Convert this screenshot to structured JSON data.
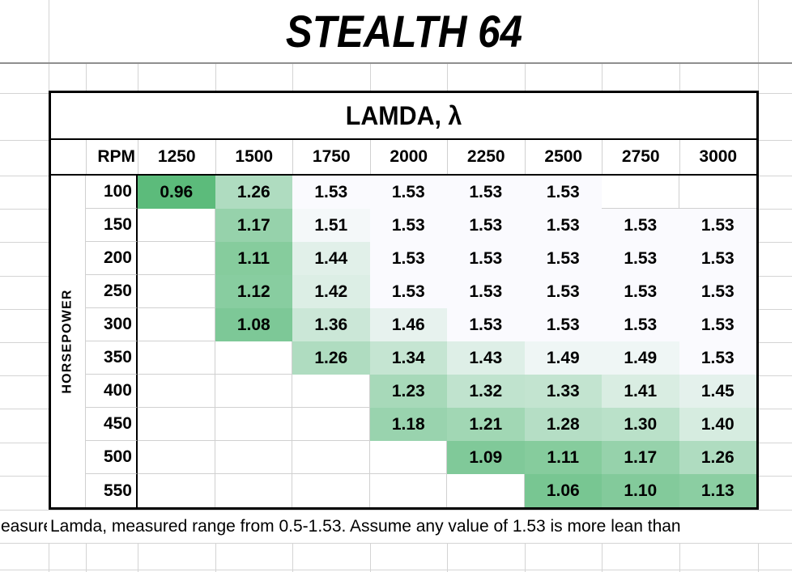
{
  "app": {
    "title": "STEALTH 64"
  },
  "table": {
    "header": "LAMDA, λ",
    "corner_label": "RPM",
    "row_axis_label": "HORSEPOWER",
    "rpm_columns": [
      "1250",
      "1500",
      "1750",
      "2000",
      "2250",
      "2500",
      "2750",
      "3000"
    ],
    "rows": [
      {
        "hp": "100",
        "values": [
          "0.96",
          "1.26",
          "1.53",
          "1.53",
          "1.53",
          "1.53",
          null,
          null
        ]
      },
      {
        "hp": "150",
        "values": [
          null,
          "1.17",
          "1.51",
          "1.53",
          "1.53",
          "1.53",
          "1.53",
          "1.53"
        ]
      },
      {
        "hp": "200",
        "values": [
          null,
          "1.11",
          "1.44",
          "1.53",
          "1.53",
          "1.53",
          "1.53",
          "1.53"
        ]
      },
      {
        "hp": "250",
        "values": [
          null,
          "1.12",
          "1.42",
          "1.53",
          "1.53",
          "1.53",
          "1.53",
          "1.53"
        ]
      },
      {
        "hp": "300",
        "values": [
          null,
          "1.08",
          "1.36",
          "1.46",
          "1.53",
          "1.53",
          "1.53",
          "1.53"
        ]
      },
      {
        "hp": "350",
        "values": [
          null,
          null,
          "1.26",
          "1.34",
          "1.43",
          "1.49",
          "1.49",
          "1.53"
        ]
      },
      {
        "hp": "400",
        "values": [
          null,
          null,
          null,
          "1.23",
          "1.32",
          "1.33",
          "1.41",
          "1.45"
        ]
      },
      {
        "hp": "450",
        "values": [
          null,
          null,
          null,
          "1.18",
          "1.21",
          "1.28",
          "1.30",
          "1.40"
        ]
      },
      {
        "hp": "500",
        "values": [
          null,
          null,
          null,
          null,
          "1.09",
          "1.11",
          "1.17",
          "1.26"
        ]
      },
      {
        "hp": "550",
        "values": [
          null,
          null,
          null,
          null,
          null,
          "1.06",
          "1.10",
          "1.13"
        ]
      }
    ],
    "color_scale": {
      "min_value": 0.96,
      "max_value": 1.53,
      "min_color": "#5CBB7B",
      "max_color": "#FAFAFE",
      "blank_color": "#FFFFFF"
    }
  },
  "footnote": {
    "left_clipped_text": "easured",
    "text": "Lamda, measured range from 0.5-1.53. Assume any value of 1.53 is more lean than"
  }
}
